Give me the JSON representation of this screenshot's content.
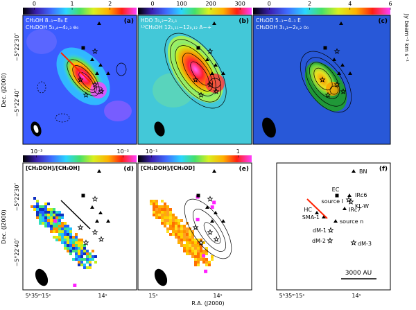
{
  "figure": {
    "xlabel": "R.A. (J2000)",
    "ylabel": "Dec. (J2000)",
    "colorbar_unit": "Jy beam⁻¹ km s⁻¹"
  },
  "chart_data": [
    {
      "type": "heatmap",
      "panel": "(a)",
      "title_lines": [
        "CH₃OH 8₋₁−8₀ E",
        "CH₂DOH 5₂,₄−4₂,₃ e₀"
      ],
      "colorbar": {
        "ticks": [
          "0",
          "1",
          "2"
        ],
        "range": [
          -0.3,
          2.7
        ]
      },
      "dec_ticks": [
        "−5°22′30″",
        "−5°22′40″"
      ]
    },
    {
      "type": "heatmap",
      "panel": "(b)",
      "title_lines": [
        "HDO 3₁,₂−2₂,₁",
        "¹³CH₃OH 12₁,₁₁−12₀,₁₂ A−+"
      ],
      "colorbar": {
        "ticks": [
          "0",
          "100",
          "200",
          "300"
        ],
        "range": [
          -50,
          340
        ]
      }
    },
    {
      "type": "heatmap",
      "panel": "(c)",
      "title_lines": [
        "CH₃OD 5₋₁−4₋₁ E",
        "CH₂DOH 3₁,₃−2₀,₂ o₀"
      ],
      "colorbar": {
        "ticks": [
          "0",
          "2",
          "4",
          "6"
        ],
        "range": [
          -0.8,
          6
        ]
      }
    },
    {
      "type": "heatmap",
      "panel": "(d)",
      "title_lines": [
        "[CH₂DOH]/[CH₃OH]"
      ],
      "colorbar": {
        "ticks": [
          "10⁻³",
          "10⁻²"
        ],
        "scale": "log"
      },
      "dec_ticks": [
        "−5°22′30″",
        "−5°22′40″"
      ],
      "ra_ticks": [
        "5ʰ35ᵐ15ˢ",
        "14ˢ"
      ]
    },
    {
      "type": "heatmap",
      "panel": "(e)",
      "title_lines": [
        "[CH₂DOH]/[CH₃OD]"
      ],
      "colorbar": {
        "ticks": [
          "10⁻¹",
          "1"
        ],
        "scale": "log"
      },
      "ra_ticks": [
        "15ˢ",
        "14ˢ"
      ]
    },
    {
      "type": "scatter",
      "panel": "(f)",
      "labels": [
        "BN",
        "EC",
        "IRc6",
        "source I",
        "KL-W",
        "IRc7",
        "HC",
        "SMA-1",
        "source n",
        "dM-1",
        "dM-2",
        "dM-3"
      ],
      "scale_bar": "3000 AU",
      "ra_ticks": [
        "5ʰ35ᵐ15ˢ",
        "14ˢ"
      ]
    }
  ]
}
